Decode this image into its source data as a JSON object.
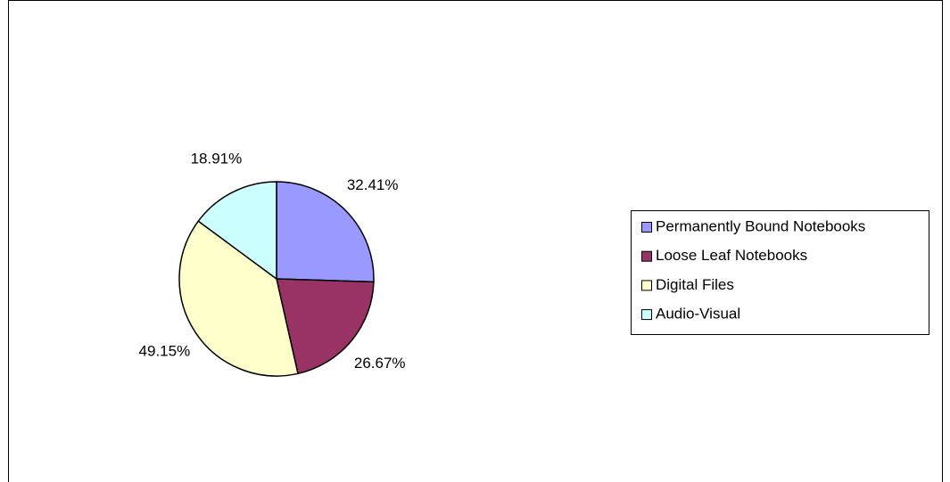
{
  "chart_data": {
    "type": "pie",
    "categories": [
      "Permanently Bound Notebooks",
      "Loose Leaf Notebooks",
      "Digital Files",
      "Audio-Visual"
    ],
    "values": [
      32.41,
      26.67,
      49.15,
      18.91
    ],
    "value_labels": [
      "32.41%",
      "26.67%",
      "49.15%",
      "18.91%"
    ],
    "colors": [
      "#9999ff",
      "#993366",
      "#ffffcc",
      "#ccffff"
    ],
    "legend": "right"
  }
}
